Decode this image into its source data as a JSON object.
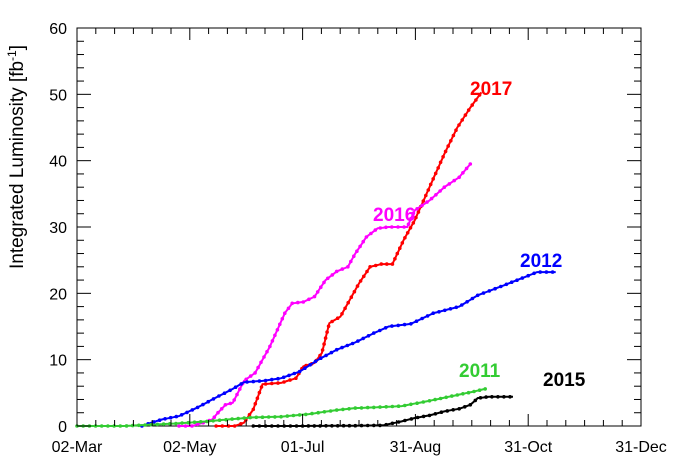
{
  "chart_data": {
    "type": "line",
    "ylabel_main": "Integrated Luminosity [fb",
    "ylabel_sup": "-1",
    "ylabel_close": "]",
    "xlabel": "",
    "title": "",
    "x_ticks": [
      "02-Mar",
      "02-May",
      "01-Jul",
      "31-Aug",
      "31-Oct",
      "31-Dec"
    ],
    "x_range_days": [
      0,
      304
    ],
    "ylim": [
      0,
      60
    ],
    "y_ticks": [
      "0",
      "10",
      "20",
      "30",
      "40",
      "50",
      "60"
    ],
    "x_unit": "day of year (0 = 02-Mar)",
    "series": [
      {
        "name": "2017",
        "color": "#ff0000",
        "points": [
          [
            75,
            0
          ],
          [
            85,
            0
          ],
          [
            90,
            0.5
          ],
          [
            95,
            2.5
          ],
          [
            100,
            6.3
          ],
          [
            110,
            6.5
          ],
          [
            118,
            7.2
          ],
          [
            122,
            9
          ],
          [
            128,
            9.5
          ],
          [
            132,
            11
          ],
          [
            136,
            15.5
          ],
          [
            142,
            16.5
          ],
          [
            147,
            19
          ],
          [
            152,
            21.5
          ],
          [
            158,
            24
          ],
          [
            164,
            24.4
          ],
          [
            170,
            24.4
          ],
          [
            176,
            28
          ],
          [
            182,
            31
          ],
          [
            190,
            36
          ],
          [
            198,
            41
          ],
          [
            205,
            45
          ],
          [
            212,
            48
          ],
          [
            218,
            50.3
          ]
        ]
      },
      {
        "name": "2016",
        "color": "#ff00ff",
        "points": [
          [
            55,
            0
          ],
          [
            62,
            0
          ],
          [
            68,
            0.5
          ],
          [
            73,
            1
          ],
          [
            76,
            2
          ],
          [
            80,
            3.2
          ],
          [
            84,
            3.5
          ],
          [
            90,
            6.8
          ],
          [
            96,
            8
          ],
          [
            104,
            12
          ],
          [
            112,
            17
          ],
          [
            116,
            18.5
          ],
          [
            122,
            18.7
          ],
          [
            128,
            19.5
          ],
          [
            134,
            22
          ],
          [
            140,
            23.3
          ],
          [
            146,
            24
          ],
          [
            150,
            26
          ],
          [
            156,
            28.5
          ],
          [
            162,
            29.8
          ],
          [
            168,
            30
          ],
          [
            178,
            30
          ],
          [
            182,
            32.5
          ],
          [
            190,
            34
          ],
          [
            198,
            36
          ],
          [
            206,
            37.5
          ],
          [
            212,
            39.5
          ]
        ]
      },
      {
        "name": "2012",
        "color": "#0000ff",
        "points": [
          [
            35,
            0
          ],
          [
            40,
            0.5
          ],
          [
            46,
            1
          ],
          [
            55,
            1.5
          ],
          [
            65,
            2.8
          ],
          [
            75,
            4.3
          ],
          [
            84,
            5.6
          ],
          [
            90,
            6.6
          ],
          [
            100,
            6.8
          ],
          [
            110,
            7.2
          ],
          [
            120,
            8.2
          ],
          [
            130,
            10
          ],
          [
            140,
            11.5
          ],
          [
            150,
            12.6
          ],
          [
            160,
            14
          ],
          [
            168,
            15
          ],
          [
            180,
            15.4
          ],
          [
            192,
            17
          ],
          [
            206,
            18
          ],
          [
            216,
            19.7
          ],
          [
            230,
            21.2
          ],
          [
            240,
            22.3
          ],
          [
            248,
            23.2
          ],
          [
            258,
            23.2
          ]
        ]
      },
      {
        "name": "2011",
        "color": "#33cc33",
        "points": [
          [
            0,
            0
          ],
          [
            25,
            0
          ],
          [
            40,
            0.2
          ],
          [
            55,
            0.4
          ],
          [
            70,
            0.7
          ],
          [
            82,
            1
          ],
          [
            95,
            1.3
          ],
          [
            110,
            1.4
          ],
          [
            125,
            1.8
          ],
          [
            140,
            2.4
          ],
          [
            150,
            2.7
          ],
          [
            160,
            2.8
          ],
          [
            175,
            3
          ],
          [
            190,
            3.8
          ],
          [
            202,
            4.5
          ],
          [
            214,
            5.2
          ],
          [
            220,
            5.6
          ]
        ]
      },
      {
        "name": "2015",
        "color": "#000000",
        "points": [
          [
            95,
            0
          ],
          [
            120,
            0
          ],
          [
            150,
            0.05
          ],
          [
            165,
            0.1
          ],
          [
            175,
            0.7
          ],
          [
            182,
            1.2
          ],
          [
            190,
            1.6
          ],
          [
            198,
            2.2
          ],
          [
            206,
            2.6
          ],
          [
            212,
            3.2
          ],
          [
            216,
            4.2
          ],
          [
            222,
            4.4
          ],
          [
            235,
            4.4
          ]
        ]
      }
    ]
  }
}
